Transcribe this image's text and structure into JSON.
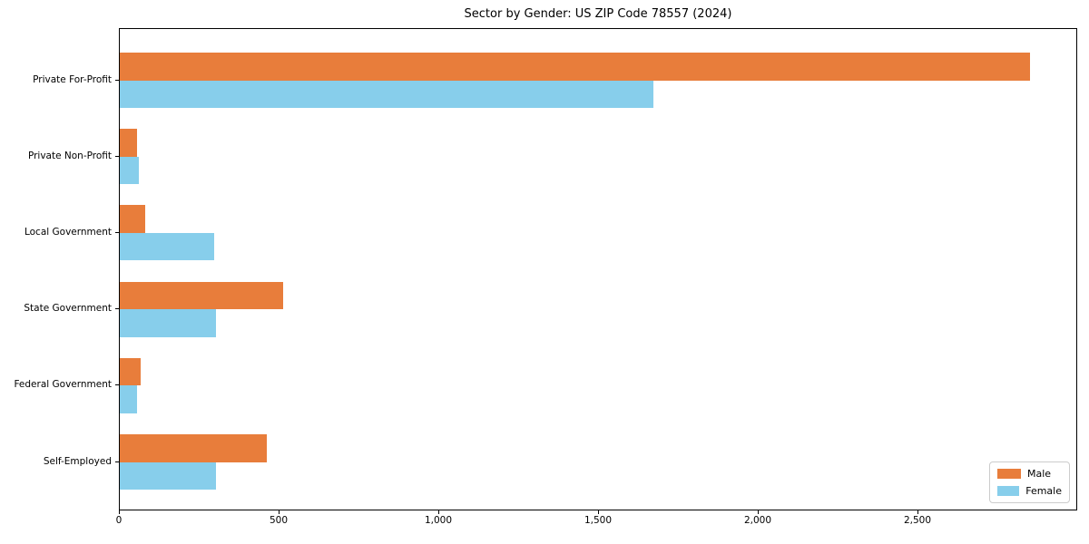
{
  "chart_data": {
    "type": "bar",
    "orientation": "horizontal",
    "title": "Sector by Gender: US ZIP Code 78557 (2024)",
    "categories": [
      "Private For-Profit",
      "Private Non-Profit",
      "Local Government",
      "State Government",
      "Federal Government",
      "Self-Employed"
    ],
    "series": [
      {
        "name": "Male",
        "color": "#e87d3b",
        "values": [
          2850,
          55,
          80,
          510,
          65,
          460
        ]
      },
      {
        "name": "Female",
        "color": "#87ceeb",
        "values": [
          1670,
          60,
          295,
          300,
          55,
          300
        ]
      }
    ],
    "xlim": [
      0,
      3000
    ],
    "xticks": [
      0,
      500,
      1000,
      1500,
      2000,
      2500
    ],
    "xtick_labels": [
      "0",
      "500",
      "1,000",
      "1,500",
      "2,000",
      "2,500"
    ],
    "grid": false,
    "legend": {
      "position": "lower right",
      "items": [
        "Male",
        "Female"
      ]
    }
  }
}
